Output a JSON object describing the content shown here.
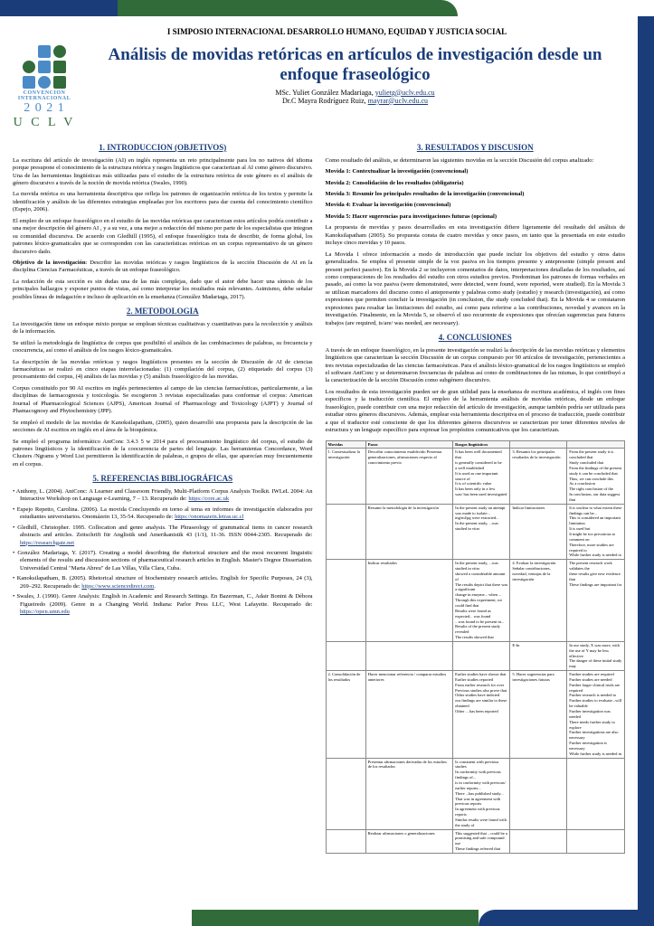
{
  "conf_title": "I SIMPOSIO INTERNACIONAL DESARROLLO HUMANO, EQUIDAD Y JUSTICIA SOCIAL",
  "logo": {
    "conv": "CONVENCION",
    "intl": "INTERNACIONAL",
    "year": "2 0 2 1",
    "uclv": "U C L V"
  },
  "title": "Análisis de movidas retóricas en artículos de investigación desde un enfoque fraseológico",
  "author1": "MSc. Yuliet González Madariaga, ",
  "email1": "yulietg@uclv.edu.cu",
  "author2": "Dr.C Mayra Rodríguez Ruiz, ",
  "email2": "mayrar@uclv.edu.cu",
  "s1_h": "1. INTRODUCCION (OBJETIVOS)",
  "s1_p1": "La escritura del artículo de investigación (AI) en inglés representa un reto principalmente para los no nativos del idioma porque presupone el conocimiento de la estructura retórica y rasgos lingüísticos que caracterizan al AI como género discursivo. Una de las herramientas lingüísticas más utilizadas para el estudio de la estructura retórica de este género es el análisis de género discursivo a través de la noción de movida retórica (Swales, 1990).",
  "s1_p2": "La movida retórica es una herramienta descriptiva que refleja los patrones de organización retórica de los textos y permite la identificación y análisis de las diferentes estrategias empleadas por los escritores para dar cuenta del conocimiento científico (Espejo, 2006).",
  "s1_p3": "El empleo de un enfoque fraseológico en el estudio de las movidas retóricas que caracterizan estos artículos podría contribuir a una mejor descripción del género AI , y a su vez, a una mejor a redacción del mismo por parte de los especialistas que integran su comunidad discursiva. De acuerdo con Gledhill (1995), el enfoque fraseológico trata de describir, de forma global, los patrones léxico-gramaticales que se corresponden con las características retóricas en un corpus representativo de un género discursivo dado.",
  "s1_p4a": "Objetivo de la investigación",
  "s1_p4b": ": Describir las movidas retóricas y rasgos lingüísticos de la sección Discusión de AI en la disciplina Ciencias Farmacéuticas, a través de un enfoque fraseológico.",
  "s1_p5": "La redacción de esta sección es sin dudas una de las más complejas, dado que el autor debe hacer una síntesis de los principales hallazgos y exponer puntos de vistas, así como interpretar los resultados más relevantes. Asimismo, debe señalar posibles líneas de indagación e incluso de aplicación en la enseñanza (González Madariaga, 2017).",
  "s2_h": "2. METODOLOGIA",
  "s2_p1": "La investigación tiene un enfoque mixto porque se emplean técnicas cualitativas y cuantitativas para la recolección y análisis de la información.",
  "s2_p2": "Se utilizó la metodología de lingüística de corpus que posibilitó el análisis de las combinaciones de palabras, su frecuencia y coocurrencia, así como el análisis de los rasgos léxico-gramaticales.",
  "s2_p3": "La descripción de las movidas retóricas y rasgos lingüísticos presentes en la sección de Discusión de AI de ciencias farmacéuticas se realizó en cinco etapas interrelacionadas: (1) compilación del corpus, (2) etiquetado del corpus (3) procesamiento del corpus, (4) análisis de las movidas y (5) análisis fraseológico de las movidas.",
  "s2_p4": "Corpus constituido por 90 AI escritos en inglés pertenecientes al campo de las ciencias farmacéuticas, particularmente, a las disciplinas de farmacognosia y toxicología. Se escogieron 3 revistas especializadas para conformar el corpus: American Journal of Pharmacological Sciences (AJPS), American Journal of Pharmacology and Toxicology (AJPT) y Journal of Phamacognosy and Phytochemistry (JPP).",
  "s2_p5": "Se empleó el modelo de las movidas de Kanoksilapatham, (2005), quien desarrolló una propuesta para la descripción de las secciones de AI escritos en inglés en el área de la bioquímica.",
  "s2_p6": "Se empleó el  programa informático AntConc 3.4.3 5 w 2014 para el procesamiento lingüístico del corpus, el estudio de patrones lingüísticos y la identificación de la coocurrencia de partes del lenguaje. Las herramientas Concordance, Word Clusters /Ngrams y Word List permitieron la identificación de palabras,  o grupos de ellas, que aparecían muy frecuentemente en el corpus.",
  "s5_h": "5. REFERENCIAS BIBLIOGRÁFICAS",
  "r1a": "Anthony, L. (2004). AntConc: A Learner and Classroom Friendly, Multi-Platform Corpus Analysis Toolkit. IWLeL 2004: An Interactive Workshop on Language e-Learning, 7 – 13. Recuperado de: ",
  "r1b": "https://core.ac.uk",
  "r2a": "Espejo Repetto, Carolina. (2006). La movida Concluyendo en torno al tema en informes de investigación elaborados por estudiantes universitarios. Onomázein 13, 35-54. Recuperado de: ",
  "r2b": "https://onomazein.letras.uc.cl",
  "r3a": "Gledhill, Christopher. 1995. Collocation and genre analysis. The Phraseology of grammatical items in cancer research abstracts and articles. Zeitschrift für Anglistik und Amerikanistik 43 (1/1), 11-36. ISSN 0044-2305. Recuperado de: ",
  "r3b": "https://researchgate.net",
  "r4": "González Madariaga, Y. (2017). Creating a model describing the rhetorical structure and the most recurrent linguistic elements of the results and discussion sections of pharmaceutical research articles in English. Master's Degree Dissertation. Universidad Central \"Marta Abreu\" de Las Villas, Villa Clara, Cuba.",
  "r5a": "Kanoksilapatham, B. (2005). Rhetorical structure of biochemistry research articles. English for Specific Purposes, 24 (3), 269–292. Recuperado de: ",
  "r5b": "https://www.sciencedirect.com",
  "r5c": ".",
  "r6a": "Swales, J. (1990). Genre Analysis: English in Academic and Research Settings. En Bazerman, C., Adair Bonini & Débora Figueiredo (2009). Genre in a Changing World. Indiana: Parlor Press LLC, West Lafayette. Recuperado de: ",
  "r6b": "https://open.umn.edu",
  "s3_h": "3. RESULTADOS Y DISCUSION",
  "s3_p1": "Como resultado del análisis, se determinaron las siguientes movidas en la sección Discusión del corpus analizado:",
  "m1": "Movida 1: Contextualizar la investigación (convencional)",
  "m2": "Movida 2: Consolidación de los resultados (obligatoria)",
  "m3": "Movida 3: Resumir los principales resultados de la investigación (convencional)",
  "m4": "Movida 4: Evaluar la investigación (convencional)",
  "m5": "Movida 5: Hacer sugerencias para investigaciones futuras (opcional)",
  "s3_p2": "La propuesta de movidas y pasos desarrollados en esta investigación difiere ligeramente del resultado del análisis de Kanoksilapatham (2005). Su propuesta consta de cuatro movidas y once pasos, en tanto que la presentada en este estudio incluye cinco movidas y 10 pasos.",
  "s3_p3": "La Movida 1 ofrece información a modo de introducción que puede incluir los objetivos del estudio y otros datos generalizados. Se emplea el presente simple de la voz pasiva en los tiempos presente y antepresente (simple present and present perfect passive). En la Movida 2 se incluyeron comentarios de datos, interpretaciones detalladas de los resultados, así como comparaciones de los resultados del estudio con otros estudios previos. Predominan los patrones de formas verbales en pasado, así como la voz pasiva (were demonstrated, were detected, were found, were reported, were studied). En la Movida 3 se utilizan marcadores del discurso como el antepresente y palabras como study (estudio) y research (investigación), así como expresiones que permiten concluir la investigación (in conclusion, the study concluded that). En la Movida 4 se constataron expresiones para resaltar las limitaciones del estudio, así como para referirse a las contribuciones, novedad y avances en la investigación. Finalmente, en la Movida 5, se observó el uso recurrente de expresiones que ofrecían sugerencias para futuros trabajos (are required, is/are/ was needed, are necessary).",
  "s4_h": "4. CONCLUSIONES",
  "s4_p1": "A través de un enfoque fraseológico, en la presente investigación se realizó la descripción de las movidas retóricas y elementos lingüísticos que caracterizan la sección Discusión de un corpus compuesto por 90 artículos de investigación, pertenecientes a tres revistas especializadas de las ciencias farmacéuticas. Para el análisis léxico-gramatical de los rasgos lingüísticos se empleó el software AntConc y se determinaron frecuencias de palabras así como de combinaciones de las mismas, lo que contribuyó a la caracterización de la sección Discusión como subgénero discursivo.",
  "s4_p2": "Los resultados de esta investigación pueden ser de gran utilidad para la enseñanza de escritura académica, el inglés con fines específicos y la traducción científica. El empleo de la herramienta análisis de movidas retóricas, desde un enfoque fraseológico, puede contribuir con una mejor redacción del artículo de investigación, aunque también podría ser utilizada para estudiar otros géneros discursivos. Además, emplear esta herramienta descriptiva en el proceso de traducción, puede contribuir a que el traductor esté consciente de que los diferentes géneros discursivos se caracterizan por tener diferentes niveles de estructura y un lenguaje específico para expresar los propósitos comunicativos que los caracterizan.",
  "table": {
    "headers": [
      "Movidas",
      "Pasos",
      "Rasgos lingüísticos",
      "",
      ""
    ],
    "rows": [
      [
        "1. Contextualizar la investigación",
        "Describir conocimiento establecido Presentar generalizaciones, afirmaciones  respecto al conocimiento previo",
        "It has been well documented that\nis generally considered to be\na well established\nIt is used as one important source of\nIt is of scientific value\nIt has been only in a few\nwas/ has been used investigated",
        "3. Resumir los principales resultados de la investigación",
        "From the present study it is concluded that\nStudy concluded that\nFrom the findings of the present study it can be concluded that\nThus, we can conclude this\nAs a conclusion\nThe right conclusion of the\nIn conclusion, our data suggest that"
      ],
      [
        "",
        "Resumir   la metodología de la investigación",
        "In the present study an attempt was made to isolate...\nmg/ml/pg were extracted...\nIn the present study, ...was studied in vitro",
        "Indicar limitaciones",
        "It is unclear to what extent these findings can be...\nThis is considered an important limitation\nIt is used but\nIt might be too precarious to comment on\nTherefore, more studies are required to\nWhile further study is needed to"
      ],
      [
        "",
        "Indicar resultados",
        "In the present study, ...was studied in vitro\nshowed a  considerable amount of\nThe results depict that there was a significant\nchange in enzyme... when ...\nThrough this experiment, we could find that\nResults were found as expected... was found\n...was found to be present in...\nResults of the present study  revealed\nThe results showed that",
        "4. Evaluar la investigación\nSeñalar contribuciones, novedad, ventajas de la investigación",
        "The present research work validates the\nthese results give new evidence that\nThese findings are important for"
      ],
      [
        "",
        "",
        "",
        "E-In",
        "In our study, X was more, with the use of Y may be less effective\nThe danger of these initial study may"
      ],
      [
        "2. Consolidación de los resultados",
        "Hacer mencionar referencia / comparar estudios anteriores",
        "Earlier studies have shown that\nEarlier studies reported\nFrom earlier research for over\nPrevious studies also prove that\nOther studies have indicted\nour findings are similar to these obtained\nOther ... has been reported",
        "5. Hacer sugerencias para investigaciones futuras",
        "Further studies are required\nFurther studies are needed\nFurther larger clinical trials are required\nFurther research is needed to\nFurther studies to evaluate...will be valuable\nFurther investigation was needed\nThere needs further study to explore\nFurther investigations are also necessary\nFurther investigation is necessary\nWhile further study is needed in"
      ],
      [
        "",
        "Presentar afirmaciones derivadas de los estudios de los resultados",
        "Is consistent with previous studies\nIn conformity with previous findings of...\nis in conformity with previous/ earlier reports...\nThere ...has published study...\nThat was in agreement with previous reports\nIn agreement with previous reports\nSimilar results were found with the study of",
        "",
        ""
      ],
      [
        "",
        "Realizar afirmaciones o generalizaciones",
        "This suggested that ...could be a promising and safe compound use\nThese findings referred that",
        "",
        ""
      ]
    ]
  }
}
